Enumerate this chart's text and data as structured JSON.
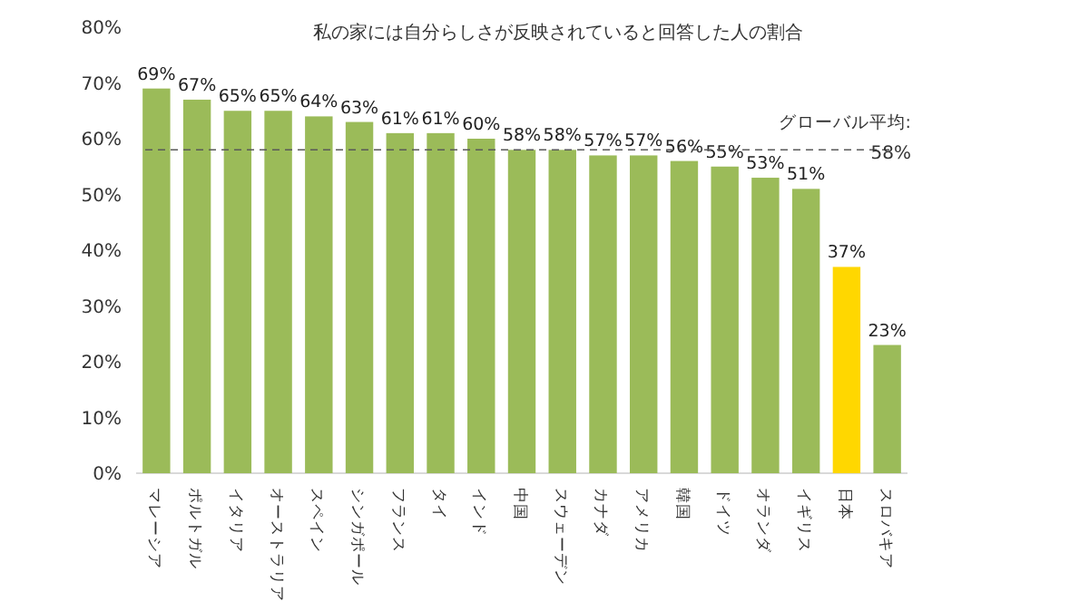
{
  "chart_data": {
    "type": "bar",
    "title": "私の家には自分らしさが反映されていると回答した人の割合",
    "categories": [
      "マレーシア",
      "ポルトガル",
      "イタリア",
      "オーストラリア",
      "スペイン",
      "シンガポール",
      "フランス",
      "タイ",
      "インド",
      "中国",
      "スウェーデン",
      "カナダ",
      "アメリカ",
      "韓国",
      "ドイツ",
      "オランダ",
      "イギリス",
      "日本",
      "スロバキア"
    ],
    "values": [
      69,
      67,
      65,
      65,
      64,
      63,
      61,
      61,
      60,
      58,
      58,
      57,
      57,
      56,
      55,
      53,
      51,
      37,
      23
    ],
    "value_labels": [
      "69%",
      "67%",
      "65%",
      "65%",
      "64%",
      "63%",
      "61%",
      "61%",
      "60%",
      "58%",
      "58%",
      "57%",
      "57%",
      "56%",
      "55%",
      "53%",
      "51%",
      "37%",
      "23%"
    ],
    "colors": [
      "#9bbb59",
      "#9bbb59",
      "#9bbb59",
      "#9bbb59",
      "#9bbb59",
      "#9bbb59",
      "#9bbb59",
      "#9bbb59",
      "#9bbb59",
      "#9bbb59",
      "#9bbb59",
      "#9bbb59",
      "#9bbb59",
      "#9bbb59",
      "#9bbb59",
      "#9bbb59",
      "#9bbb59",
      "#ffd700",
      "#9bbb59"
    ],
    "ylim": [
      0,
      80
    ],
    "yticks": [
      {
        "value": 0,
        "label": "0%"
      },
      {
        "value": 10,
        "label": "10%"
      },
      {
        "value": 20,
        "label": "20%"
      },
      {
        "value": 30,
        "label": "30%"
      },
      {
        "value": 40,
        "label": "40%"
      },
      {
        "value": 50,
        "label": "50%"
      },
      {
        "value": 60,
        "label": "60%"
      },
      {
        "value": 70,
        "label": "70%"
      },
      {
        "value": 80,
        "label": "80%"
      }
    ],
    "ref_lines": [
      {
        "axis": "y",
        "value": 58,
        "label": "グローバル平均:",
        "color": "#595959",
        "line_style": "dashed"
      }
    ],
    "annotations": [
      {
        "text": "58%",
        "y": 58
      }
    ],
    "grid": false
  }
}
